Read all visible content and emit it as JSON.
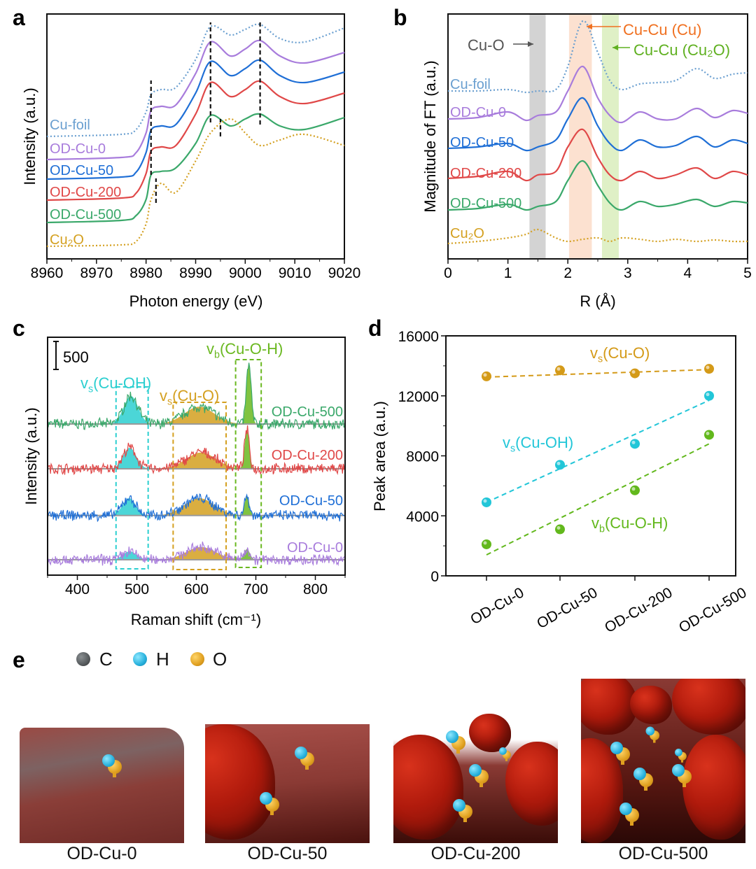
{
  "panel_labels": {
    "a": "a",
    "b": "b",
    "c": "c",
    "d": "d",
    "e": "e"
  },
  "chart_data": [
    {
      "id": "a",
      "type": "line",
      "title": "",
      "xlabel": "Photon energy (eV)",
      "ylabel": "Intensity (a.u.)",
      "xlim": [
        8960,
        9020
      ],
      "ylim": [
        0,
        350
      ],
      "xticks": [
        8960,
        8970,
        8980,
        8990,
        9000,
        9010,
        9020
      ],
      "x": [
        8960,
        8975,
        8978,
        8980,
        8981,
        8983,
        8986,
        8990,
        8993,
        8997,
        9000,
        9003,
        9007,
        9012,
        9020
      ],
      "series": [
        {
          "name": "Cu-foil",
          "color": "#6a9fd0",
          "style": "dotted",
          "y": [
            175,
            178,
            185,
            210,
            235,
            242,
            245,
            285,
            332,
            320,
            328,
            335,
            315,
            310,
            330
          ]
        },
        {
          "name": "OD-Cu-0",
          "color": "#a87cdc",
          "style": "solid",
          "y": [
            142,
            145,
            152,
            180,
            212,
            218,
            220,
            265,
            310,
            290,
            300,
            312,
            290,
            280,
            295
          ]
        },
        {
          "name": "OD-Cu-50",
          "color": "#1f6fd6",
          "style": "solid",
          "y": [
            114,
            117,
            124,
            152,
            184,
            190,
            192,
            237,
            282,
            262,
            272,
            284,
            262,
            252,
            267
          ]
        },
        {
          "name": "OD-Cu-200",
          "color": "#e04848",
          "style": "solid",
          "y": [
            84,
            87,
            94,
            122,
            154,
            160,
            162,
            207,
            252,
            232,
            242,
            254,
            232,
            222,
            237
          ]
        },
        {
          "name": "OD-Cu-500",
          "color": "#3aa86a",
          "style": "solid",
          "y": [
            52,
            55,
            62,
            85,
            120,
            125,
            130,
            165,
            205,
            190,
            200,
            207,
            190,
            185,
            202
          ]
        },
        {
          "name": "Cu₂O",
          "color": "#d4a020",
          "style": "dotted",
          "y": [
            18,
            20,
            25,
            50,
            85,
            108,
            95,
            140,
            180,
            200,
            180,
            162,
            170,
            178,
            162
          ]
        }
      ],
      "annotations": [
        {
          "type": "vline-dashed",
          "x": 8981,
          "y_range": [
            120,
            255
          ]
        },
        {
          "type": "vline-dashed",
          "x": 8982,
          "y_range": [
            80,
            115
          ]
        },
        {
          "type": "vline-dashed",
          "x": 8993,
          "y_range": [
            195,
            338
          ]
        },
        {
          "type": "vline-dashed",
          "x": 8995,
          "y_range": [
            175,
            200
          ]
        },
        {
          "type": "vline-dashed",
          "x": 9003,
          "y_range": [
            192,
            338
          ]
        }
      ]
    },
    {
      "id": "b",
      "type": "line",
      "xlabel": "R (Å)",
      "ylabel": "Magnitude of FT (a.u.)",
      "xlim": [
        0,
        5
      ],
      "ylim": [
        0,
        350
      ],
      "xticks": [
        0,
        1,
        2,
        3,
        4,
        5
      ],
      "x": [
        0,
        0.5,
        1,
        1.3,
        1.5,
        1.8,
        2.0,
        2.25,
        2.5,
        2.7,
        2.9,
        3.2,
        3.5,
        3.8,
        4.15,
        4.45,
        4.75,
        5
      ],
      "series": [
        {
          "name": "Cu-foil",
          "color": "#6a9fd0",
          "style": "dotted",
          "y": [
            240,
            240,
            242,
            238,
            240,
            242,
            275,
            340,
            295,
            255,
            242,
            250,
            252,
            255,
            272,
            258,
            264,
            266
          ]
        },
        {
          "name": "OD-Cu-0",
          "color": "#a87cdc",
          "style": "solid",
          "y": [
            200,
            202,
            210,
            198,
            205,
            210,
            240,
            275,
            230,
            205,
            195,
            210,
            200,
            200,
            215,
            202,
            212,
            208
          ]
        },
        {
          "name": "OD-Cu-50",
          "color": "#1f6fd6",
          "style": "solid",
          "y": [
            158,
            160,
            165,
            155,
            160,
            170,
            200,
            230,
            190,
            165,
            155,
            170,
            160,
            162,
            175,
            160,
            170,
            165
          ]
        },
        {
          "name": "OD-Cu-200",
          "color": "#e04848",
          "style": "solid",
          "y": [
            115,
            118,
            125,
            112,
            120,
            125,
            160,
            185,
            145,
            120,
            112,
            125,
            115,
            120,
            130,
            115,
            125,
            120
          ]
        },
        {
          "name": "OD-Cu-500",
          "color": "#3aa86a",
          "style": "solid",
          "y": [
            70,
            72,
            78,
            70,
            75,
            82,
            112,
            140,
            105,
            80,
            70,
            82,
            75,
            78,
            85,
            75,
            82,
            80
          ]
        },
        {
          "name": "Cu₂O",
          "color": "#d4a020",
          "style": "dotted",
          "y": [
            22,
            25,
            30,
            35,
            42,
            30,
            25,
            28,
            30,
            25,
            30,
            28,
            25,
            28,
            25,
            27,
            25,
            25
          ]
        }
      ],
      "bands": [
        {
          "label": "Cu-O",
          "range": [
            1.36,
            1.63
          ],
          "color": "#c8c8c8",
          "text_color": "#555555"
        },
        {
          "label": "Cu-Cu (Cu)",
          "range": [
            2.02,
            2.4
          ],
          "color": "#fbd9c4",
          "text_color": "#f07020"
        },
        {
          "label": "Cu-Cu (Cu₂O)",
          "range": [
            2.57,
            2.85
          ],
          "color": "#d7ecb8",
          "text_color": "#5fb020"
        }
      ]
    },
    {
      "id": "c",
      "type": "line",
      "xlabel": "Raman shift (cm⁻¹)",
      "ylabel": "Intensity (a.u.)",
      "xlim": [
        350,
        850
      ],
      "ylim": [
        -275,
        3975
      ],
      "xticks": [
        400,
        500,
        600,
        700,
        800
      ],
      "scale_bar": {
        "label": "500",
        "value": 500
      },
      "series": [
        {
          "name": "OD-Cu-500",
          "color": "#3aa86a",
          "offset": 2425,
          "peaks": [
            {
              "center": 490,
              "height": 500,
              "width": 12
            },
            {
              "center": 605,
              "height": 310,
              "width": 25
            },
            {
              "center": 688,
              "height": 1060,
              "width": 4
            }
          ]
        },
        {
          "name": "OD-Cu-200",
          "color": "#e04848",
          "offset": 1625,
          "peaks": [
            {
              "center": 488,
              "height": 375,
              "width": 11
            },
            {
              "center": 608,
              "height": 290,
              "width": 25
            },
            {
              "center": 685,
              "height": 690,
              "width": 4
            }
          ]
        },
        {
          "name": "OD-Cu-50",
          "color": "#1f6fd6",
          "offset": 790,
          "peaks": [
            {
              "center": 487,
              "height": 310,
              "width": 11
            },
            {
              "center": 605,
              "height": 310,
              "width": 25
            },
            {
              "center": 685,
              "height": 350,
              "width": 4
            }
          ]
        },
        {
          "name": "OD-Cu-0",
          "color": "#a87cdc",
          "offset": 0,
          "peaks": [
            {
              "center": 488,
              "height": 150,
              "width": 11
            },
            {
              "center": 608,
              "height": 225,
              "width": 25
            },
            {
              "center": 685,
              "height": 190,
              "width": 5
            }
          ]
        }
      ],
      "regions": [
        {
          "mode": {
            "v": "v",
            "sub": "s",
            "text": "(Cu-OH)"
          },
          "x_range": [
            465,
            519
          ],
          "y_range": [
            -163,
            3088
          ],
          "color": "#2ccfd0"
        },
        {
          "mode": {
            "v": "v",
            "sub": "s",
            "text": "(Cu-O)"
          },
          "x_range": [
            561,
            650
          ],
          "y_range": [
            -175,
            2813
          ],
          "color": "#d4a020"
        },
        {
          "mode": {
            "v": "v",
            "sub": "b",
            "text": "(Cu-O-H)"
          },
          "x_range": [
            666,
            709
          ],
          "y_range": [
            -138,
            3575
          ],
          "color": "#6ab820"
        }
      ]
    },
    {
      "id": "d",
      "type": "scatter",
      "xlabel": "",
      "ylabel": "Peak area (a.u.)",
      "categories": [
        "OD-Cu-0",
        "OD-Cu-50",
        "OD-Cu-200",
        "OD-Cu-500"
      ],
      "ylim": [
        0,
        16000
      ],
      "yticks": [
        0,
        4000,
        8000,
        12000,
        16000
      ],
      "series": [
        {
          "name": {
            "v": "v",
            "sub": "s",
            "text": "(Cu-O)"
          },
          "color": "#d49a18",
          "values": [
            13300,
            13700,
            13500,
            13800
          ],
          "fit": [
            13250,
            13750
          ]
        },
        {
          "name": {
            "v": "v",
            "sub": "s",
            "text": "(Cu-OH)"
          },
          "color": "#22c6d8",
          "values": [
            4900,
            7400,
            8800,
            12000
          ],
          "fit": [
            4900,
            11700
          ]
        },
        {
          "name": {
            "v": "v",
            "sub": "b",
            "text": "(Cu-O-H)"
          },
          "color": "#62b81c",
          "values": [
            2100,
            3100,
            5700,
            9400
          ],
          "fit": [
            1400,
            8800
          ]
        }
      ]
    }
  ],
  "panel_e": {
    "legend": [
      {
        "symbol": "C",
        "color": "#555a5c"
      },
      {
        "symbol": "H",
        "color": "#26b0dc"
      },
      {
        "symbol": "O",
        "color": "#e0a020"
      }
    ],
    "scenes": [
      {
        "label": "OD-Cu-0"
      },
      {
        "label": "OD-Cu-50"
      },
      {
        "label": "OD-Cu-200"
      },
      {
        "label": "OD-Cu-500"
      }
    ]
  }
}
